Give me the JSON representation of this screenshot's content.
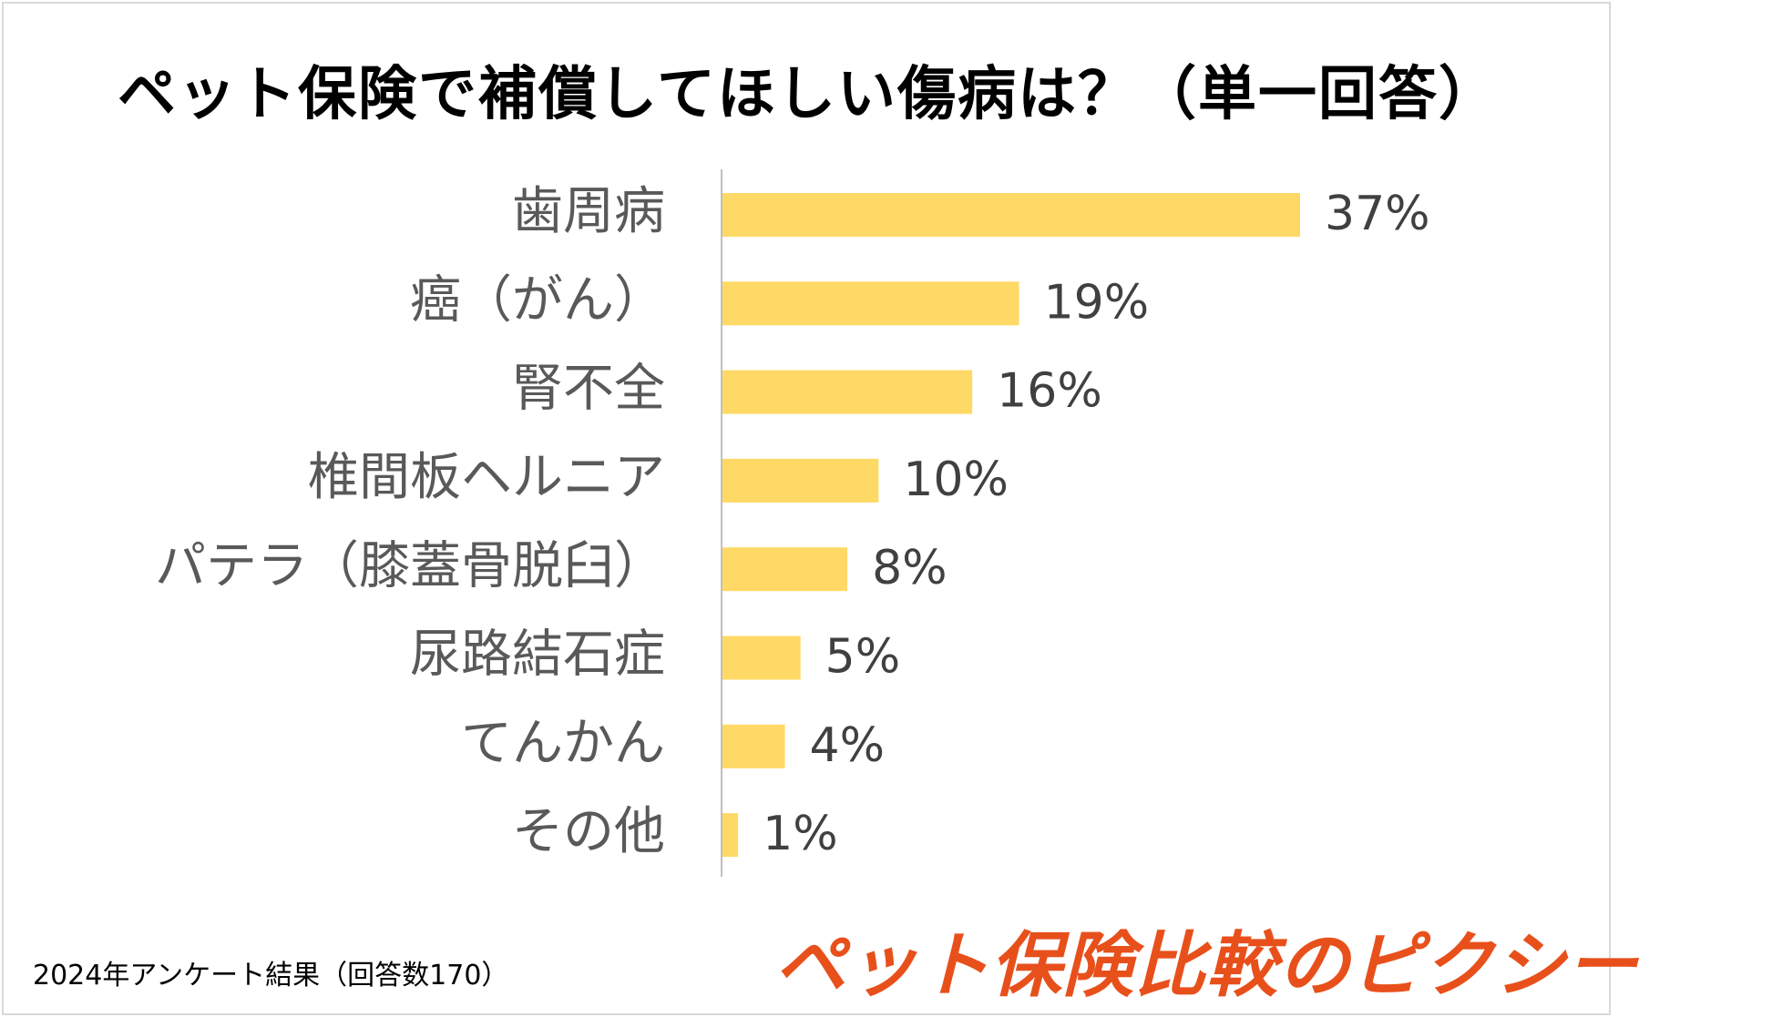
{
  "chart_data": {
    "type": "bar",
    "orientation": "horizontal",
    "title": "ペット保険で補償してほしい傷病は？（単一回答）",
    "categories": [
      "歯周病",
      "癌（がん）",
      "腎不全",
      "椎間板ヘルニア",
      "パテラ（膝蓋骨脱臼）",
      "尿路結石症",
      "てんかん",
      "その他"
    ],
    "values": [
      37,
      19,
      16,
      10,
      8,
      5,
      4,
      1
    ],
    "value_labels": [
      "37%",
      "19%",
      "16%",
      "10%",
      "8%",
      "5%",
      "4%",
      "1%"
    ],
    "unit": "%",
    "xlim": [
      0,
      50
    ],
    "bar_color": "#ffd966",
    "grid": false,
    "legend": "none"
  },
  "footnote": "2024年アンケート結果（回答数170）",
  "brand": "ペット保険比較のピクシー",
  "colors": {
    "brand": "#e8501b",
    "bar": "#ffd966",
    "axis": "#bfbfbf"
  }
}
